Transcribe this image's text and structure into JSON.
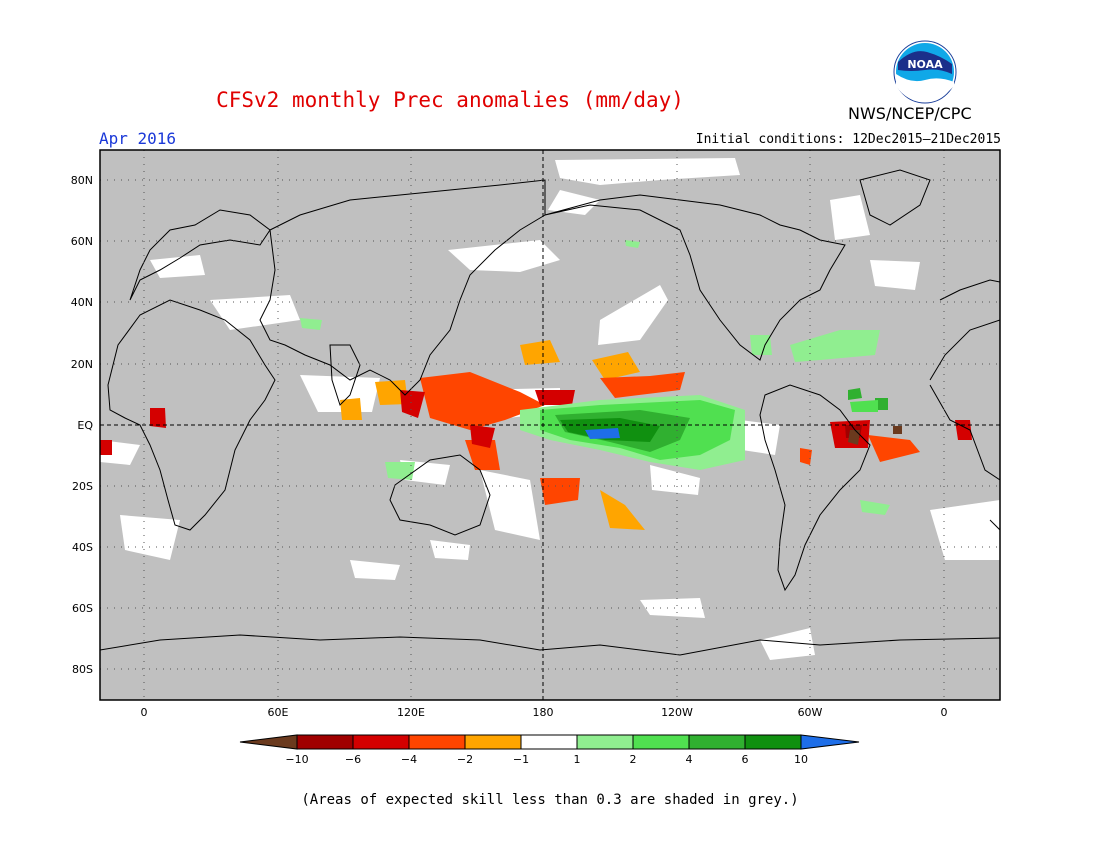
{
  "header": {
    "title": "CFSv2 monthly Prec anomalies (mm/day)",
    "org": "NWS/NCEP/CPC",
    "logo_text": "NOAA",
    "month": "Apr 2016",
    "initial_conditions": "Initial conditions: 12Dec2015–21Dec2015"
  },
  "map": {
    "lat_labels": [
      "80N",
      "60N",
      "40N",
      "20N",
      "EQ",
      "20S",
      "40S",
      "60S",
      "80S"
    ],
    "lon_labels": [
      "0",
      "60E",
      "120E",
      "180",
      "120W",
      "60W",
      "0"
    ],
    "background_color": "#c0c0c0"
  },
  "colorbar": {
    "labels": [
      "−10",
      "−6",
      "−4",
      "−2",
      "−1",
      "1",
      "2",
      "4",
      "6",
      "10"
    ],
    "colors": [
      "#6b3a1e",
      "#a00000",
      "#d40000",
      "#ff4500",
      "#ffa500",
      "#ffffff",
      "#90ee90",
      "#50e050",
      "#30b030",
      "#109010",
      "#1e6ee8"
    ]
  },
  "footnote": "(Areas of expected skill less than 0.3 are shaded in grey.)"
}
